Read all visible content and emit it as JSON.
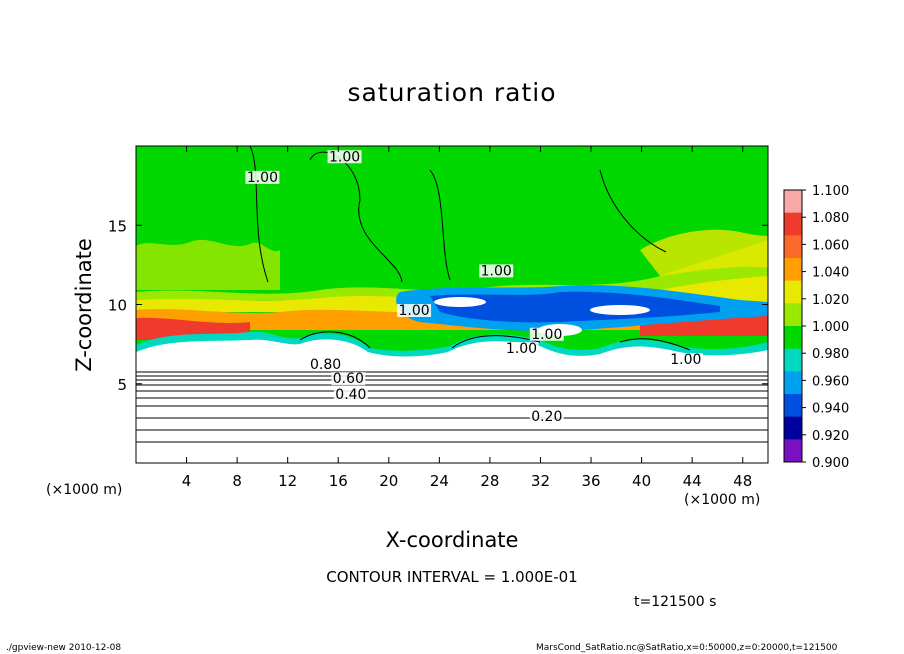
{
  "page": {
    "footer_left": "./gpview-new   2010-12-08",
    "footer_right": "MarsCond_SatRatio.nc@SatRatio,x=0:50000,z=0:20000,t=121500",
    "contour_interval": "CONTOUR INTERVAL = 1.000E-01",
    "time_label": "t=121500  s"
  },
  "chart_data": {
    "type": "heatmap",
    "title": "saturation ratio",
    "xlabel": "X-coordinate",
    "ylabel": "Z-coordinate",
    "x_unit_label": "(×1000 m)",
    "xlim": [
      0,
      50
    ],
    "ylim": [
      0,
      20
    ],
    "x_ticks": [
      4,
      8,
      12,
      16,
      20,
      24,
      28,
      32,
      36,
      40,
      44,
      48
    ],
    "y_ticks": [
      5,
      10,
      15
    ],
    "colorbar": {
      "levels": [
        "1.100",
        "1.080",
        "1.060",
        "1.040",
        "1.020",
        "1.000",
        "0.980",
        "0.960",
        "0.940",
        "0.920",
        "0.900"
      ],
      "colors": [
        "#f7a8a8",
        "#ef3b2c",
        "#fb6a2a",
        "#ffa000",
        "#e8e800",
        "#9be800",
        "#00d800",
        "#00d8c0",
        "#00a0f0",
        "#0050e0",
        "#0000a0",
        "#7a10c0"
      ]
    },
    "contour_labels": [
      "1.00",
      "1.00",
      "1.00",
      "1.00",
      "1.00",
      "1.00",
      "1.00",
      "0.80",
      "0.60",
      "0.40",
      "0.20"
    ]
  }
}
